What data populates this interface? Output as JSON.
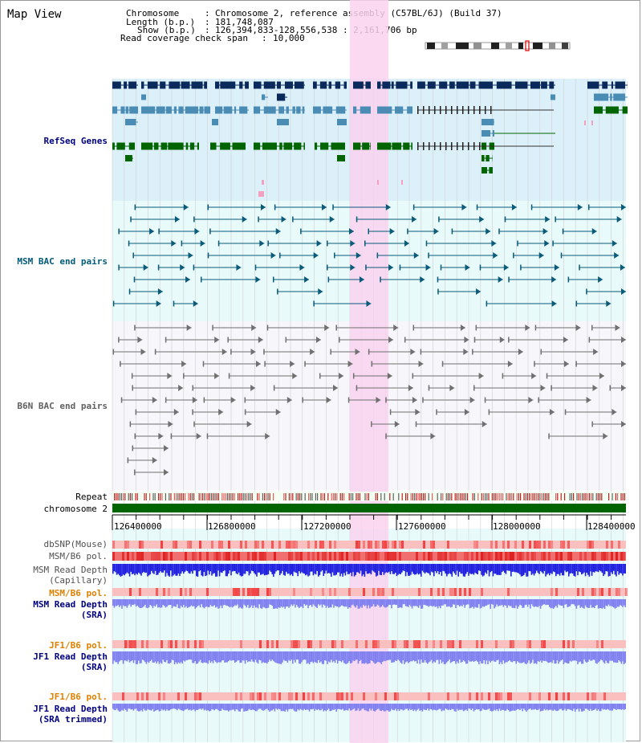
{
  "page": {
    "title": "Map View"
  },
  "header": {
    "chromosome_key": "Chromosome",
    "chromosome_value": "Chromosome 2, reference assembly (C57BL/6J) (Build 37)",
    "length_key": "Length (b.p.)",
    "length_value": "181,748,087",
    "show_key": "Show (b.p.)",
    "show_value": "126,394,833-128,556,538 : 2,161,706 bp",
    "coverage_key": "Read coverage check span",
    "coverage_value": "10,000",
    "separator": ":"
  },
  "tracks": {
    "refseq": "RefSeq Genes",
    "msm_bac": "MSM BAC end pairs",
    "b6n_bac": "B6N BAC end pairs",
    "repeat": "Repeat",
    "chromosome": "chromosome 2",
    "dbsnp": "dbSNP(Mouse)",
    "msm_pol": "MSM/B6 pol.",
    "msm_depth_cap_1": "MSM Read Depth",
    "msm_depth_cap_2": "(Capillary)",
    "msm_pol_2": "MSM/B6 pol.",
    "msm_depth_sra_1": "MSM Read Depth",
    "msm_depth_sra_2": "(SRA)",
    "jf1_pol": "JF1/B6 pol.",
    "jf1_depth_1": "JF1 Read Depth",
    "jf1_depth_2": "(SRA)",
    "jf1_pol_2": "JF1/B6 pol.",
    "jf1_trim_1": "JF1 Read Depth",
    "jf1_trim_2": "(SRA trimmed)"
  },
  "axis": {
    "ticks": [
      "126400000",
      "126800000",
      "127200000",
      "127600000",
      "128000000",
      "128400000"
    ]
  },
  "colors": {
    "refseq_bg": "#dcf0fa",
    "bac_bg": "#e8fafa",
    "b6n_bg": "#f6f6fb",
    "highlight": "#f9d2ee",
    "dark_gene": "#0a2a5c",
    "mid_gene": "#4a8cb4",
    "green_gene": "#006400",
    "chromosome": "#006400",
    "msm_bac": "#0a5a7a",
    "b6n_bac": "#707070",
    "read_depth": "#2020e0",
    "read_depth_light": "#8080f0",
    "pol_red": "#f04040",
    "pol_pink": "#fac0c0",
    "label_navy": "#000080",
    "label_teal": "#005a78",
    "label_orange": "#e08000"
  }
}
